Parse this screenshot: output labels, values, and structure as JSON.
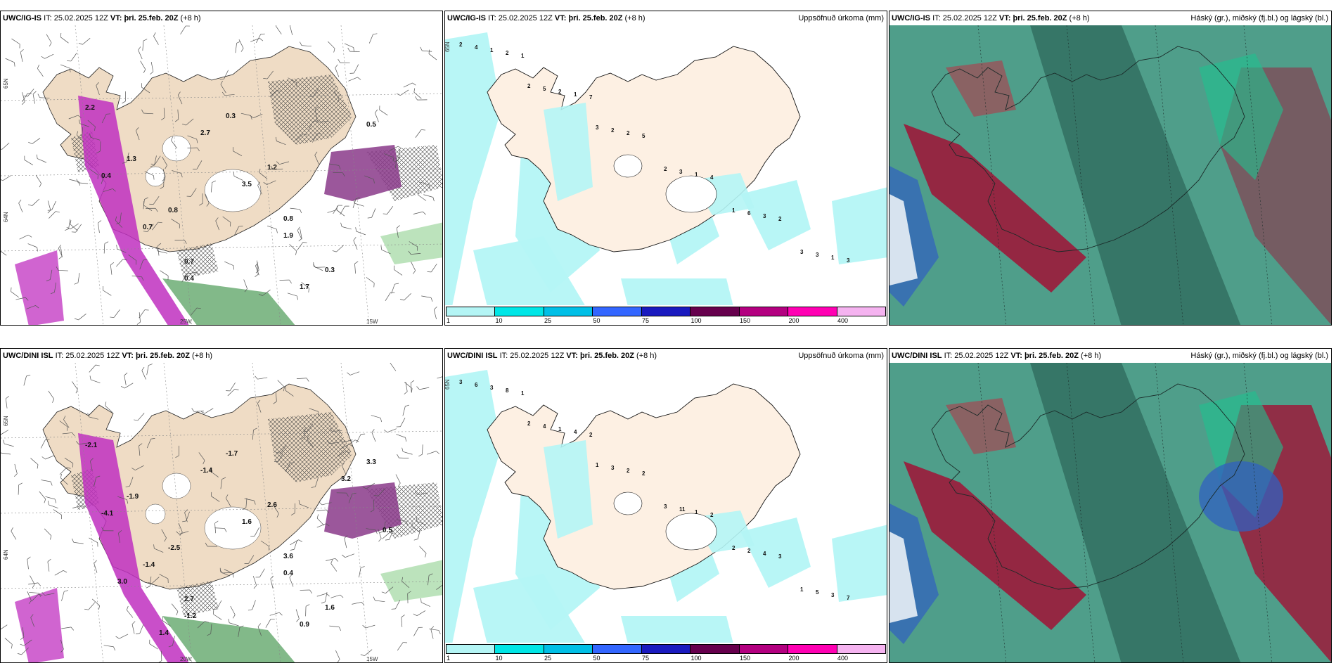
{
  "rows": [
    {
      "panels": [
        {
          "type": "wind",
          "model": "UWC/IG-IS",
          "it_label": "IT:",
          "it": "25.02.2025 12Z",
          "vt_label": "VT:",
          "vt": "þri. 25.feb. 20Z",
          "lead": "(+8 h)",
          "right_title": "",
          "lat_labels": [
            "65N",
            "64N"
          ],
          "lon_labels": [
            "25W",
            "15W"
          ],
          "values": [
            "2.2",
            "1.3",
            "0.8",
            "0.7",
            "0.3",
            "1.2",
            "0.8",
            "0.3",
            "0.5",
            "0.4",
            "0.7",
            "0.4",
            "2.7",
            "3.5",
            "1.9",
            "1.7"
          ]
        },
        {
          "type": "precip",
          "model": "UWC/IG-IS",
          "it_label": "IT:",
          "it": "25.02.2025 12Z",
          "vt_label": "VT:",
          "vt": "þri. 25.feb. 20Z",
          "lead": "(+8 h)",
          "right_title": "Uppsöfnuð úrkoma (mm)",
          "lat_labels": [
            "65N"
          ],
          "values": [
            "2",
            "2",
            "3",
            "2",
            "1",
            "3",
            "4",
            "5",
            "2",
            "3",
            "6",
            "3",
            "1",
            "2",
            "2",
            "1",
            "3",
            "1",
            "2",
            "1",
            "5",
            "4",
            "2",
            "3",
            "1",
            "7"
          ]
        },
        {
          "type": "cloud",
          "model": "UWC/IG-IS",
          "it_label": "IT:",
          "it": "25.02.2025 12Z",
          "vt_label": "VT:",
          "vt": "þri. 25.feb. 20Z",
          "lead": "(+8 h)",
          "right_title": "Háský (gr.), miðský (fj.bl.) og lágský (bl.)"
        }
      ]
    },
    {
      "panels": [
        {
          "type": "wind",
          "model": "UWC/DINI ISL",
          "it_label": "IT:",
          "it": "25.02.2025 12Z",
          "vt_label": "VT:",
          "vt": "þri. 25.feb. 20Z",
          "lead": "(+8 h)",
          "right_title": "",
          "lat_labels": [
            "65N",
            "64N"
          ],
          "lon_labels": [
            "20W",
            "15W"
          ],
          "values": [
            "-2.1",
            "-1.9",
            "-2.5",
            "2.7",
            "-1.7",
            "2.6",
            "3.6",
            "1.6",
            "3.3",
            "-4.1",
            "-1.4",
            "-1.2",
            "-1.4",
            "1.6",
            "0.4",
            "0.9",
            "3.2",
            "0.5",
            "3.0",
            "1.4"
          ]
        },
        {
          "type": "precip",
          "model": "UWC/DINI ISL",
          "it_label": "IT:",
          "it": "25.02.2025 12Z",
          "vt_label": "VT:",
          "vt": "þri. 25.feb. 20Z",
          "lead": "(+8 h)",
          "right_title": "Uppsöfnuð úrkoma (mm)",
          "lat_labels": [
            "65N"
          ],
          "values": [
            "3",
            "2",
            "1",
            "3",
            "2",
            "1",
            "6",
            "4",
            "3",
            "11",
            "2",
            "5",
            "3",
            "1",
            "2",
            "1",
            "4",
            "3",
            "8",
            "4",
            "2",
            "2",
            "3",
            "7",
            "1",
            "2"
          ]
        },
        {
          "type": "cloud",
          "model": "UWC/DINI ISL",
          "it_label": "IT:",
          "it": "25.02.2025 12Z",
          "vt_label": "VT:",
          "vt": "þri. 25.feb. 20Z",
          "lead": "(+8 h)",
          "right_title": "Háský (gr.), miðský (fj.bl.) og lágský (bl.)"
        }
      ]
    }
  ],
  "colorbar": {
    "labels": [
      "1",
      "10",
      "25",
      "50",
      "75",
      "100",
      "150",
      "200",
      "400"
    ],
    "colors": [
      "#b4f5f5",
      "#00e6e6",
      "#00bfe6",
      "#3366ff",
      "#1a1abf",
      "#66004d",
      "#b30080",
      "#ff00b3",
      "#f5b3f0"
    ]
  },
  "colors": {
    "land": "#efdcc5",
    "land_light": "#fdf0e3",
    "precip_cyan": "#b4f5f5",
    "rain_magenta": "#c030c0",
    "wet_green": "#2e8b3a",
    "cloud_teal": "#4f9e8a",
    "cloud_dark": "#2f6b5e",
    "cloud_red": "#9b1a3a",
    "cloud_blue": "#3060c0"
  }
}
